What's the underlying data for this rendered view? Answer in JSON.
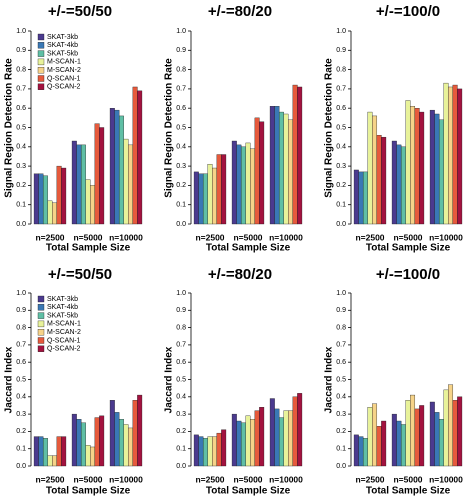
{
  "colors": {
    "SKAT-3kb": "#4b3a8f",
    "SKAT-4kb": "#3a78b5",
    "SKAT-5kb": "#5fbfa5",
    "M-SCAN-1": "#e8f29a",
    "M-SCAN-2": "#f6d389",
    "Q-SCAN-1": "#e65a3c",
    "Q-SCAN-2": "#a3123f"
  },
  "chart_data": [
    {
      "type": "bar",
      "title": "+/-=50/50",
      "xlabel": "Total Sample Size",
      "ylabel": "Signal Region Detection Rate",
      "ylim": [
        0,
        1
      ],
      "yticks": [
        "0.0",
        "0.1",
        "0.2",
        "0.3",
        "0.4",
        "0.5",
        "0.6",
        "0.7",
        "0.8",
        "0.9",
        "1.0"
      ],
      "categories": [
        "n=2500",
        "n=5000",
        "n=10000"
      ],
      "series": [
        {
          "name": "SKAT-3kb",
          "values": [
            0.26,
            0.43,
            0.6
          ]
        },
        {
          "name": "SKAT-4kb",
          "values": [
            0.26,
            0.41,
            0.59
          ]
        },
        {
          "name": "SKAT-5kb",
          "values": [
            0.25,
            0.41,
            0.56
          ]
        },
        {
          "name": "M-SCAN-1",
          "values": [
            0.12,
            0.23,
            0.44
          ]
        },
        {
          "name": "M-SCAN-2",
          "values": [
            0.11,
            0.2,
            0.41
          ]
        },
        {
          "name": "Q-SCAN-1",
          "values": [
            0.3,
            0.52,
            0.71
          ]
        },
        {
          "name": "Q-SCAN-2",
          "values": [
            0.29,
            0.5,
            0.69
          ]
        }
      ],
      "legend": "top-left"
    },
    {
      "type": "bar",
      "title": "+/-=80/20",
      "xlabel": "Total Sample Size",
      "ylabel": "Signal Region Detection Rate",
      "ylim": [
        0,
        1
      ],
      "yticks": [
        "0.0",
        "0.1",
        "0.2",
        "0.3",
        "0.4",
        "0.5",
        "0.6",
        "0.7",
        "0.8",
        "0.9",
        "1.0"
      ],
      "categories": [
        "n=2500",
        "n=5000",
        "n=10000"
      ],
      "series": [
        {
          "name": "SKAT-3kb",
          "values": [
            0.27,
            0.43,
            0.61
          ]
        },
        {
          "name": "SKAT-4kb",
          "values": [
            0.26,
            0.41,
            0.61
          ]
        },
        {
          "name": "SKAT-5kb",
          "values": [
            0.26,
            0.4,
            0.58
          ]
        },
        {
          "name": "M-SCAN-1",
          "values": [
            0.31,
            0.42,
            0.57
          ]
        },
        {
          "name": "M-SCAN-2",
          "values": [
            0.29,
            0.39,
            0.54
          ]
        },
        {
          "name": "Q-SCAN-1",
          "values": [
            0.36,
            0.55,
            0.72
          ]
        },
        {
          "name": "Q-SCAN-2",
          "values": [
            0.36,
            0.53,
            0.71
          ]
        }
      ]
    },
    {
      "type": "bar",
      "title": "+/-=100/0",
      "xlabel": "Total Sample Size",
      "ylabel": "Signal Region Detection Rate",
      "ylim": [
        0,
        1
      ],
      "yticks": [
        "0.0",
        "0.1",
        "0.2",
        "0.3",
        "0.4",
        "0.5",
        "0.6",
        "0.7",
        "0.8",
        "0.9",
        "1.0"
      ],
      "categories": [
        "n=2500",
        "n=5000",
        "n=10000"
      ],
      "series": [
        {
          "name": "SKAT-3kb",
          "values": [
            0.28,
            0.43,
            0.59
          ]
        },
        {
          "name": "SKAT-4kb",
          "values": [
            0.27,
            0.41,
            0.57
          ]
        },
        {
          "name": "SKAT-5kb",
          "values": [
            0.27,
            0.4,
            0.54
          ]
        },
        {
          "name": "M-SCAN-1",
          "values": [
            0.58,
            0.64,
            0.73
          ]
        },
        {
          "name": "M-SCAN-2",
          "values": [
            0.56,
            0.61,
            0.71
          ]
        },
        {
          "name": "Q-SCAN-1",
          "values": [
            0.46,
            0.6,
            0.72
          ]
        },
        {
          "name": "Q-SCAN-2",
          "values": [
            0.45,
            0.58,
            0.7
          ]
        }
      ]
    },
    {
      "type": "bar",
      "title": "+/-=50/50",
      "xlabel": "Total Sample Size",
      "ylabel": "Jaccard Index",
      "ylim": [
        0,
        1
      ],
      "yticks": [
        "0.0",
        "0.1",
        "0.2",
        "0.3",
        "0.4",
        "0.5",
        "0.6",
        "0.7",
        "0.8",
        "0.9",
        "1.0"
      ],
      "categories": [
        "n=2500",
        "n=5000",
        "n=10000"
      ],
      "series": [
        {
          "name": "SKAT-3kb",
          "values": [
            0.17,
            0.3,
            0.38
          ]
        },
        {
          "name": "SKAT-4kb",
          "values": [
            0.17,
            0.27,
            0.31
          ]
        },
        {
          "name": "SKAT-5kb",
          "values": [
            0.16,
            0.25,
            0.27
          ]
        },
        {
          "name": "M-SCAN-1",
          "values": [
            0.06,
            0.12,
            0.24
          ]
        },
        {
          "name": "M-SCAN-2",
          "values": [
            0.06,
            0.11,
            0.22
          ]
        },
        {
          "name": "Q-SCAN-1",
          "values": [
            0.17,
            0.28,
            0.38
          ]
        },
        {
          "name": "Q-SCAN-2",
          "values": [
            0.17,
            0.29,
            0.41
          ]
        }
      ],
      "legend": "top-left"
    },
    {
      "type": "bar",
      "title": "+/-=80/20",
      "xlabel": "Total Sample Size",
      "ylabel": "Jaccard Index",
      "ylim": [
        0,
        1
      ],
      "yticks": [
        "0.0",
        "0.1",
        "0.2",
        "0.3",
        "0.4",
        "0.5",
        "0.6",
        "0.7",
        "0.8",
        "0.9",
        "1.0"
      ],
      "categories": [
        "n=2500",
        "n=5000",
        "n=10000"
      ],
      "series": [
        {
          "name": "SKAT-3kb",
          "values": [
            0.18,
            0.3,
            0.39
          ]
        },
        {
          "name": "SKAT-4kb",
          "values": [
            0.17,
            0.26,
            0.33
          ]
        },
        {
          "name": "SKAT-5kb",
          "values": [
            0.16,
            0.25,
            0.28
          ]
        },
        {
          "name": "M-SCAN-1",
          "values": [
            0.17,
            0.29,
            0.32
          ]
        },
        {
          "name": "M-SCAN-2",
          "values": [
            0.17,
            0.27,
            0.32
          ]
        },
        {
          "name": "Q-SCAN-1",
          "values": [
            0.19,
            0.32,
            0.4
          ]
        },
        {
          "name": "Q-SCAN-2",
          "values": [
            0.21,
            0.34,
            0.42
          ]
        }
      ]
    },
    {
      "type": "bar",
      "title": "+/-=100/0",
      "xlabel": "Total Sample Size",
      "ylabel": "Jaccard Index",
      "ylim": [
        0,
        1
      ],
      "yticks": [
        "0.0",
        "0.1",
        "0.2",
        "0.3",
        "0.4",
        "0.5",
        "0.6",
        "0.7",
        "0.8",
        "0.9",
        "1.0"
      ],
      "categories": [
        "n=2500",
        "n=5000",
        "n=10000"
      ],
      "series": [
        {
          "name": "SKAT-3kb",
          "values": [
            0.18,
            0.3,
            0.37
          ]
        },
        {
          "name": "SKAT-4kb",
          "values": [
            0.17,
            0.26,
            0.31
          ]
        },
        {
          "name": "SKAT-5kb",
          "values": [
            0.16,
            0.24,
            0.27
          ]
        },
        {
          "name": "M-SCAN-1",
          "values": [
            0.34,
            0.38,
            0.44
          ]
        },
        {
          "name": "M-SCAN-2",
          "values": [
            0.36,
            0.41,
            0.47
          ]
        },
        {
          "name": "Q-SCAN-1",
          "values": [
            0.23,
            0.33,
            0.38
          ]
        },
        {
          "name": "Q-SCAN-2",
          "values": [
            0.26,
            0.35,
            0.4
          ]
        }
      ]
    }
  ]
}
